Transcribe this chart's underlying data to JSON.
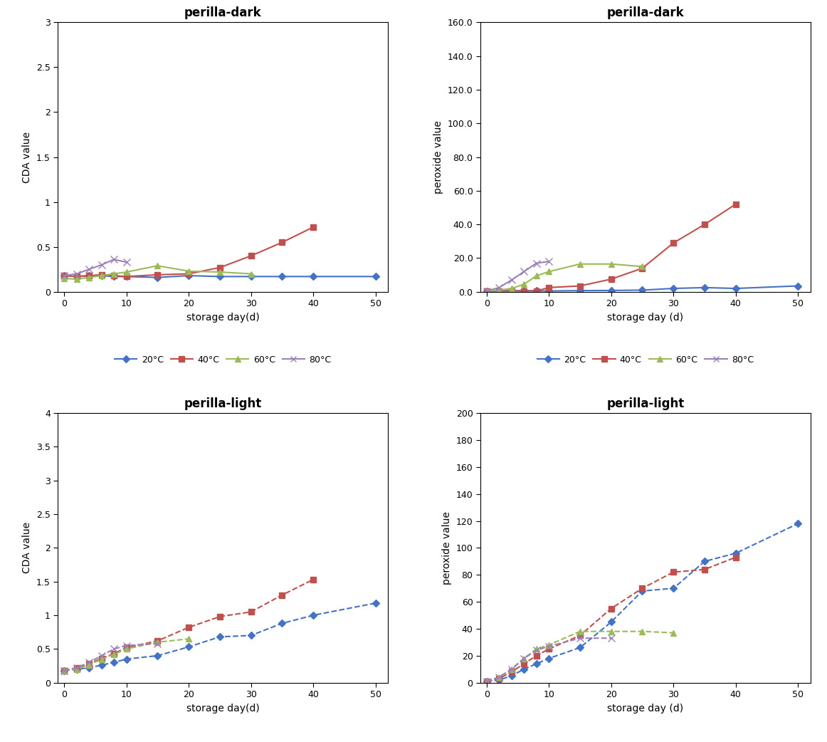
{
  "panels": [
    {
      "title": "perilla-dark",
      "ylabel": "CDA value",
      "xlabel": "storage day(d)",
      "xlim": [
        -1,
        52
      ],
      "ylim": [
        0,
        3
      ],
      "yticks": [
        0,
        0.5,
        1.0,
        1.5,
        2.0,
        2.5,
        3.0
      ],
      "yticklabels": [
        "0",
        "0.5",
        "1",
        "1.5",
        "2",
        "2.5",
        "3"
      ],
      "xticks": [
        0,
        10,
        20,
        30,
        40,
        50
      ],
      "linestyle": "solid",
      "series": [
        {
          "label": "20°C",
          "color": "#4472C4",
          "marker": "D",
          "x": [
            0,
            2,
            4,
            6,
            8,
            10,
            15,
            20,
            25,
            30,
            35,
            40,
            50
          ],
          "y": [
            0.18,
            0.17,
            0.18,
            0.18,
            0.17,
            0.17,
            0.16,
            0.18,
            0.17,
            0.17,
            0.17,
            0.17,
            0.17
          ]
        },
        {
          "label": "40°C",
          "color": "#C0504D",
          "marker": "s",
          "x": [
            0,
            2,
            4,
            6,
            8,
            10,
            15,
            20,
            25,
            30,
            35,
            40
          ],
          "y": [
            0.18,
            0.17,
            0.18,
            0.19,
            0.18,
            0.17,
            0.19,
            0.2,
            0.27,
            0.4,
            0.55,
            0.72
          ]
        },
        {
          "label": "60°C",
          "color": "#9BBB59",
          "marker": "^",
          "x": [
            0,
            2,
            4,
            6,
            8,
            10,
            15,
            20,
            25,
            30
          ],
          "y": [
            0.15,
            0.14,
            0.16,
            0.18,
            0.2,
            0.22,
            0.29,
            0.23,
            0.22,
            0.2
          ]
        },
        {
          "label": "80°C",
          "color": "#9E80B8",
          "marker": "x",
          "x": [
            0,
            2,
            4,
            6,
            8,
            10
          ],
          "y": [
            0.18,
            0.2,
            0.25,
            0.3,
            0.36,
            0.33
          ]
        }
      ]
    },
    {
      "title": "perilla-dark",
      "ylabel": "peroxide value",
      "xlabel": "storage day (d)",
      "xlim": [
        -1,
        52
      ],
      "ylim": [
        0,
        160
      ],
      "yticks": [
        0,
        20.0,
        40.0,
        60.0,
        80.0,
        100.0,
        120.0,
        140.0,
        160.0
      ],
      "yticklabels": [
        "0.0",
        "20.0",
        "40.0",
        "60.0",
        "80.0",
        "100.0",
        "120.0",
        "140.0",
        "160.0"
      ],
      "xticks": [
        0,
        10,
        20,
        30,
        40,
        50
      ],
      "linestyle": "solid",
      "series": [
        {
          "label": "20°C",
          "color": "#4472C4",
          "marker": "D",
          "x": [
            0,
            2,
            4,
            6,
            8,
            10,
            15,
            20,
            25,
            30,
            35,
            40,
            50
          ],
          "y": [
            0.5,
            0.5,
            0.6,
            0.7,
            0.6,
            0.5,
            0.7,
            0.8,
            1.0,
            2.0,
            2.5,
            2.0,
            3.5
          ]
        },
        {
          "label": "40°C",
          "color": "#C0504D",
          "marker": "s",
          "x": [
            0,
            2,
            4,
            6,
            8,
            10,
            15,
            20,
            25,
            30,
            35,
            40
          ],
          "y": [
            0.5,
            0.5,
            0.5,
            0.5,
            0.5,
            2.5,
            3.5,
            7.5,
            14.0,
            29.0,
            40.0,
            52.0
          ]
        },
        {
          "label": "60°C",
          "color": "#9BBB59",
          "marker": "^",
          "x": [
            0,
            2,
            4,
            6,
            8,
            10,
            15,
            20,
            25
          ],
          "y": [
            0.5,
            1.0,
            2.0,
            4.5,
            9.5,
            12.0,
            16.5,
            16.5,
            15.0
          ]
        },
        {
          "label": "80°C",
          "color": "#9E80B8",
          "marker": "x",
          "x": [
            0,
            2,
            4,
            6,
            8,
            10
          ],
          "y": [
            0.5,
            2.5,
            7.0,
            12.0,
            17.0,
            18.0
          ]
        }
      ]
    },
    {
      "title": "perilla-light",
      "ylabel": "CDA value",
      "xlabel": "storage day(d)",
      "xlim": [
        -1,
        52
      ],
      "ylim": [
        0,
        4
      ],
      "yticks": [
        0,
        0.5,
        1.0,
        1.5,
        2.0,
        2.5,
        3.0,
        3.5,
        4.0
      ],
      "yticklabels": [
        "0",
        "0.5",
        "1",
        "1.5",
        "2",
        "2.5",
        "3",
        "3.5",
        "4"
      ],
      "xticks": [
        0,
        10,
        20,
        30,
        40,
        50
      ],
      "linestyle": "dashed",
      "series": [
        {
          "label": "20°C",
          "color": "#4472C4",
          "marker": "D",
          "x": [
            0,
            2,
            4,
            6,
            8,
            10,
            15,
            20,
            25,
            30,
            35,
            40,
            50
          ],
          "y": [
            0.18,
            0.2,
            0.22,
            0.26,
            0.3,
            0.35,
            0.4,
            0.53,
            0.68,
            0.7,
            0.88,
            1.0,
            1.18
          ]
        },
        {
          "label": "40°C",
          "color": "#C0504D",
          "marker": "s",
          "x": [
            0,
            2,
            4,
            6,
            8,
            10,
            15,
            20,
            25,
            30,
            35,
            40
          ],
          "y": [
            0.18,
            0.22,
            0.28,
            0.36,
            0.43,
            0.52,
            0.62,
            0.82,
            0.98,
            1.05,
            1.3,
            1.53
          ]
        },
        {
          "label": "60°C",
          "color": "#9BBB59",
          "marker": "^",
          "x": [
            0,
            2,
            4,
            6,
            8,
            10,
            15,
            20
          ],
          "y": [
            0.18,
            0.2,
            0.26,
            0.35,
            0.42,
            0.5,
            0.6,
            0.65
          ]
        },
        {
          "label": "80°C",
          "color": "#9E80B8",
          "marker": "x",
          "x": [
            0,
            2,
            4,
            6,
            8,
            10,
            15
          ],
          "y": [
            0.18,
            0.22,
            0.3,
            0.4,
            0.5,
            0.55,
            0.58
          ]
        }
      ]
    },
    {
      "title": "perilla-light",
      "ylabel": "peroxide value",
      "xlabel": "storage day (d)",
      "xlim": [
        -1,
        52
      ],
      "ylim": [
        0,
        200
      ],
      "yticks": [
        0,
        20,
        40,
        60,
        80,
        100,
        120,
        140,
        160,
        180,
        200
      ],
      "yticklabels": [
        "0",
        "20",
        "40",
        "60",
        "80",
        "100",
        "120",
        "140",
        "160",
        "180",
        "200"
      ],
      "xticks": [
        0,
        10,
        20,
        30,
        40,
        50
      ],
      "linestyle": "dashed",
      "series": [
        {
          "label": "20°C",
          "color": "#4472C4",
          "marker": "D",
          "x": [
            0,
            2,
            4,
            6,
            8,
            10,
            15,
            20,
            25,
            30,
            35,
            40,
            50
          ],
          "y": [
            1,
            2,
            5,
            10,
            14,
            18,
            26,
            45,
            68,
            70,
            90,
            96,
            118
          ]
        },
        {
          "label": "40°C",
          "color": "#C0504D",
          "marker": "s",
          "x": [
            0,
            2,
            4,
            6,
            8,
            10,
            15,
            20,
            25,
            30,
            35,
            40
          ],
          "y": [
            1,
            3,
            8,
            14,
            20,
            25,
            35,
            55,
            70,
            82,
            84,
            93
          ]
        },
        {
          "label": "60°C",
          "color": "#9BBB59",
          "marker": "^",
          "x": [
            0,
            2,
            4,
            6,
            8,
            10,
            15,
            20,
            25,
            30
          ],
          "y": [
            1,
            4,
            10,
            18,
            25,
            28,
            38,
            38,
            38,
            37
          ]
        },
        {
          "label": "80°C",
          "color": "#9E80B8",
          "marker": "x",
          "x": [
            0,
            2,
            4,
            6,
            8,
            10,
            15,
            20
          ],
          "y": [
            1,
            4,
            10,
            18,
            24,
            27,
            33,
            33
          ]
        }
      ]
    }
  ],
  "bg_color": "#FFFFFF",
  "title_fontsize": 12,
  "label_fontsize": 10,
  "tick_fontsize": 9,
  "legend_fontsize": 9
}
